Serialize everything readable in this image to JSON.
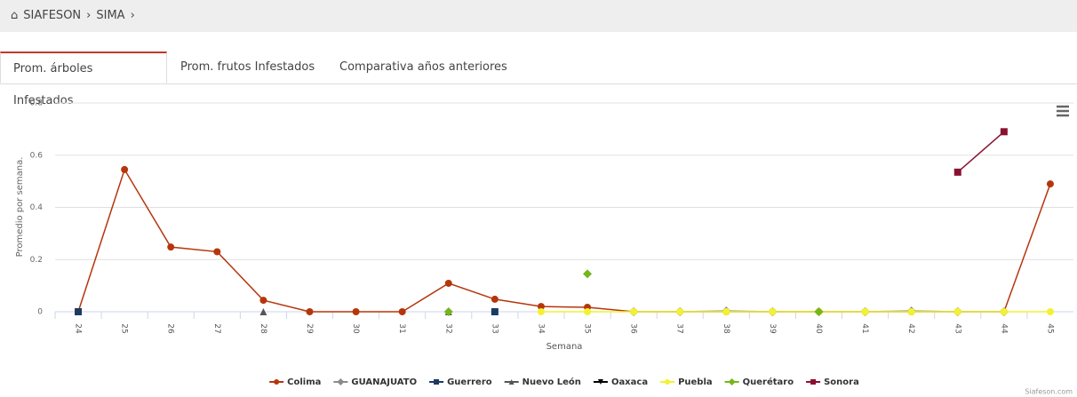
{
  "breadcrumb": [
    "SIAFESON",
    "SIMA"
  ],
  "tabs": [
    "Prom. árboles Infestados",
    "Prom. frutos Infestados",
    "Comparativa años anteriores"
  ],
  "chart_data": {
    "type": "line",
    "y_label": "Promedio por semana.",
    "x_label": "Semana",
    "categories": [
      "24",
      "25",
      "26",
      "27",
      "28",
      "29",
      "30",
      "31",
      "32",
      "33",
      "34",
      "35",
      "36",
      "37",
      "38",
      "39",
      "40",
      "41",
      "42",
      "43",
      "44",
      "45"
    ],
    "ylim": [
      0,
      0.8
    ],
    "yticks": [
      0,
      0.2,
      0.4,
      0.6,
      0.8
    ],
    "grid": true,
    "legend": "bottom",
    "series": [
      {
        "name": "Colima",
        "color": "#b5360c",
        "marker": "circle",
        "values": [
          0,
          0.545,
          0.248,
          0.23,
          0.044,
          0,
          0,
          0,
          0.109,
          0.048,
          0.02,
          0.017,
          0,
          0,
          0,
          0,
          0,
          0,
          0,
          0,
          0,
          0.49
        ]
      },
      {
        "name": "GUANAJUATO",
        "color": "#8c8c8c",
        "marker": "diamond",
        "values": [
          null,
          null,
          null,
          null,
          null,
          null,
          null,
          null,
          null,
          null,
          null,
          null,
          0,
          0,
          0.003,
          0,
          0,
          0,
          0.003,
          0,
          0,
          null
        ]
      },
      {
        "name": "Guerrero",
        "color": "#1d3a5f",
        "marker": "square",
        "values": [
          0,
          null,
          null,
          null,
          null,
          null,
          null,
          null,
          null,
          0,
          null,
          null,
          null,
          null,
          null,
          null,
          null,
          null,
          null,
          null,
          null,
          null
        ]
      },
      {
        "name": "Nuevo León",
        "color": "#555555",
        "marker": "triangle",
        "values": [
          null,
          null,
          null,
          null,
          0,
          null,
          null,
          null,
          0,
          null,
          null,
          null,
          null,
          null,
          null,
          null,
          null,
          null,
          null,
          null,
          null,
          null
        ]
      },
      {
        "name": "Oaxaca",
        "color": "#000000",
        "marker": "triangle-down",
        "values": [
          null,
          null,
          null,
          null,
          null,
          null,
          null,
          null,
          null,
          null,
          null,
          null,
          null,
          null,
          null,
          null,
          null,
          null,
          null,
          null,
          null,
          null
        ]
      },
      {
        "name": "Puebla",
        "color": "#f2f230",
        "marker": "circle",
        "values": [
          null,
          null,
          null,
          null,
          null,
          null,
          null,
          null,
          null,
          null,
          0,
          0,
          0,
          0,
          0,
          0,
          0,
          0,
          0,
          0,
          0,
          0
        ]
      },
      {
        "name": "Querétaro",
        "color": "#76b51c",
        "marker": "diamond",
        "values": [
          null,
          null,
          null,
          null,
          null,
          null,
          null,
          null,
          0,
          null,
          null,
          0.145,
          null,
          null,
          null,
          null,
          0,
          null,
          null,
          null,
          null,
          null
        ]
      },
      {
        "name": "Sonora",
        "color": "#8a1032",
        "marker": "square",
        "values": [
          null,
          null,
          null,
          null,
          null,
          null,
          null,
          null,
          null,
          null,
          null,
          null,
          null,
          null,
          null,
          null,
          null,
          null,
          null,
          0.535,
          0.69,
          null
        ]
      }
    ]
  },
  "credit": "Siafeson.com"
}
